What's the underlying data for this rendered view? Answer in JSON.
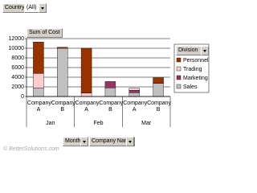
{
  "chart_data": {
    "type": "stacked-bar",
    "page_field": {
      "name": "Country",
      "value": "(All)"
    },
    "data_field": "Sum of Cost",
    "legend_title": "Division",
    "groups": [
      "Jan",
      "Feb",
      "Mar"
    ],
    "categories": [
      "Company A",
      "Company B",
      "Company A",
      "Company B",
      "Company A",
      "Company B"
    ],
    "series": [
      {
        "name": "Sales",
        "color": "#c0c0c0",
        "values": [
          1800,
          10000,
          0,
          1800,
          800,
          2700
        ]
      },
      {
        "name": "Marketing",
        "color": "#993366",
        "values": [
          0,
          0,
          0,
          1300,
          500,
          0
        ]
      },
      {
        "name": "Trading",
        "color": "#ffcccc",
        "values": [
          3000,
          0,
          700,
          0,
          400,
          0
        ]
      },
      {
        "name": "Personnel",
        "color": "#993300",
        "values": [
          6500,
          200,
          9300,
          0,
          0,
          1200
        ]
      }
    ],
    "ylim": [
      0,
      12000
    ],
    "yticks": [
      0,
      2000,
      4000,
      6000,
      8000,
      10000,
      12000
    ],
    "grid": true,
    "row_fields": [
      "Month",
      "Company Name"
    ],
    "watermark": "© BetterSolutions.com"
  }
}
